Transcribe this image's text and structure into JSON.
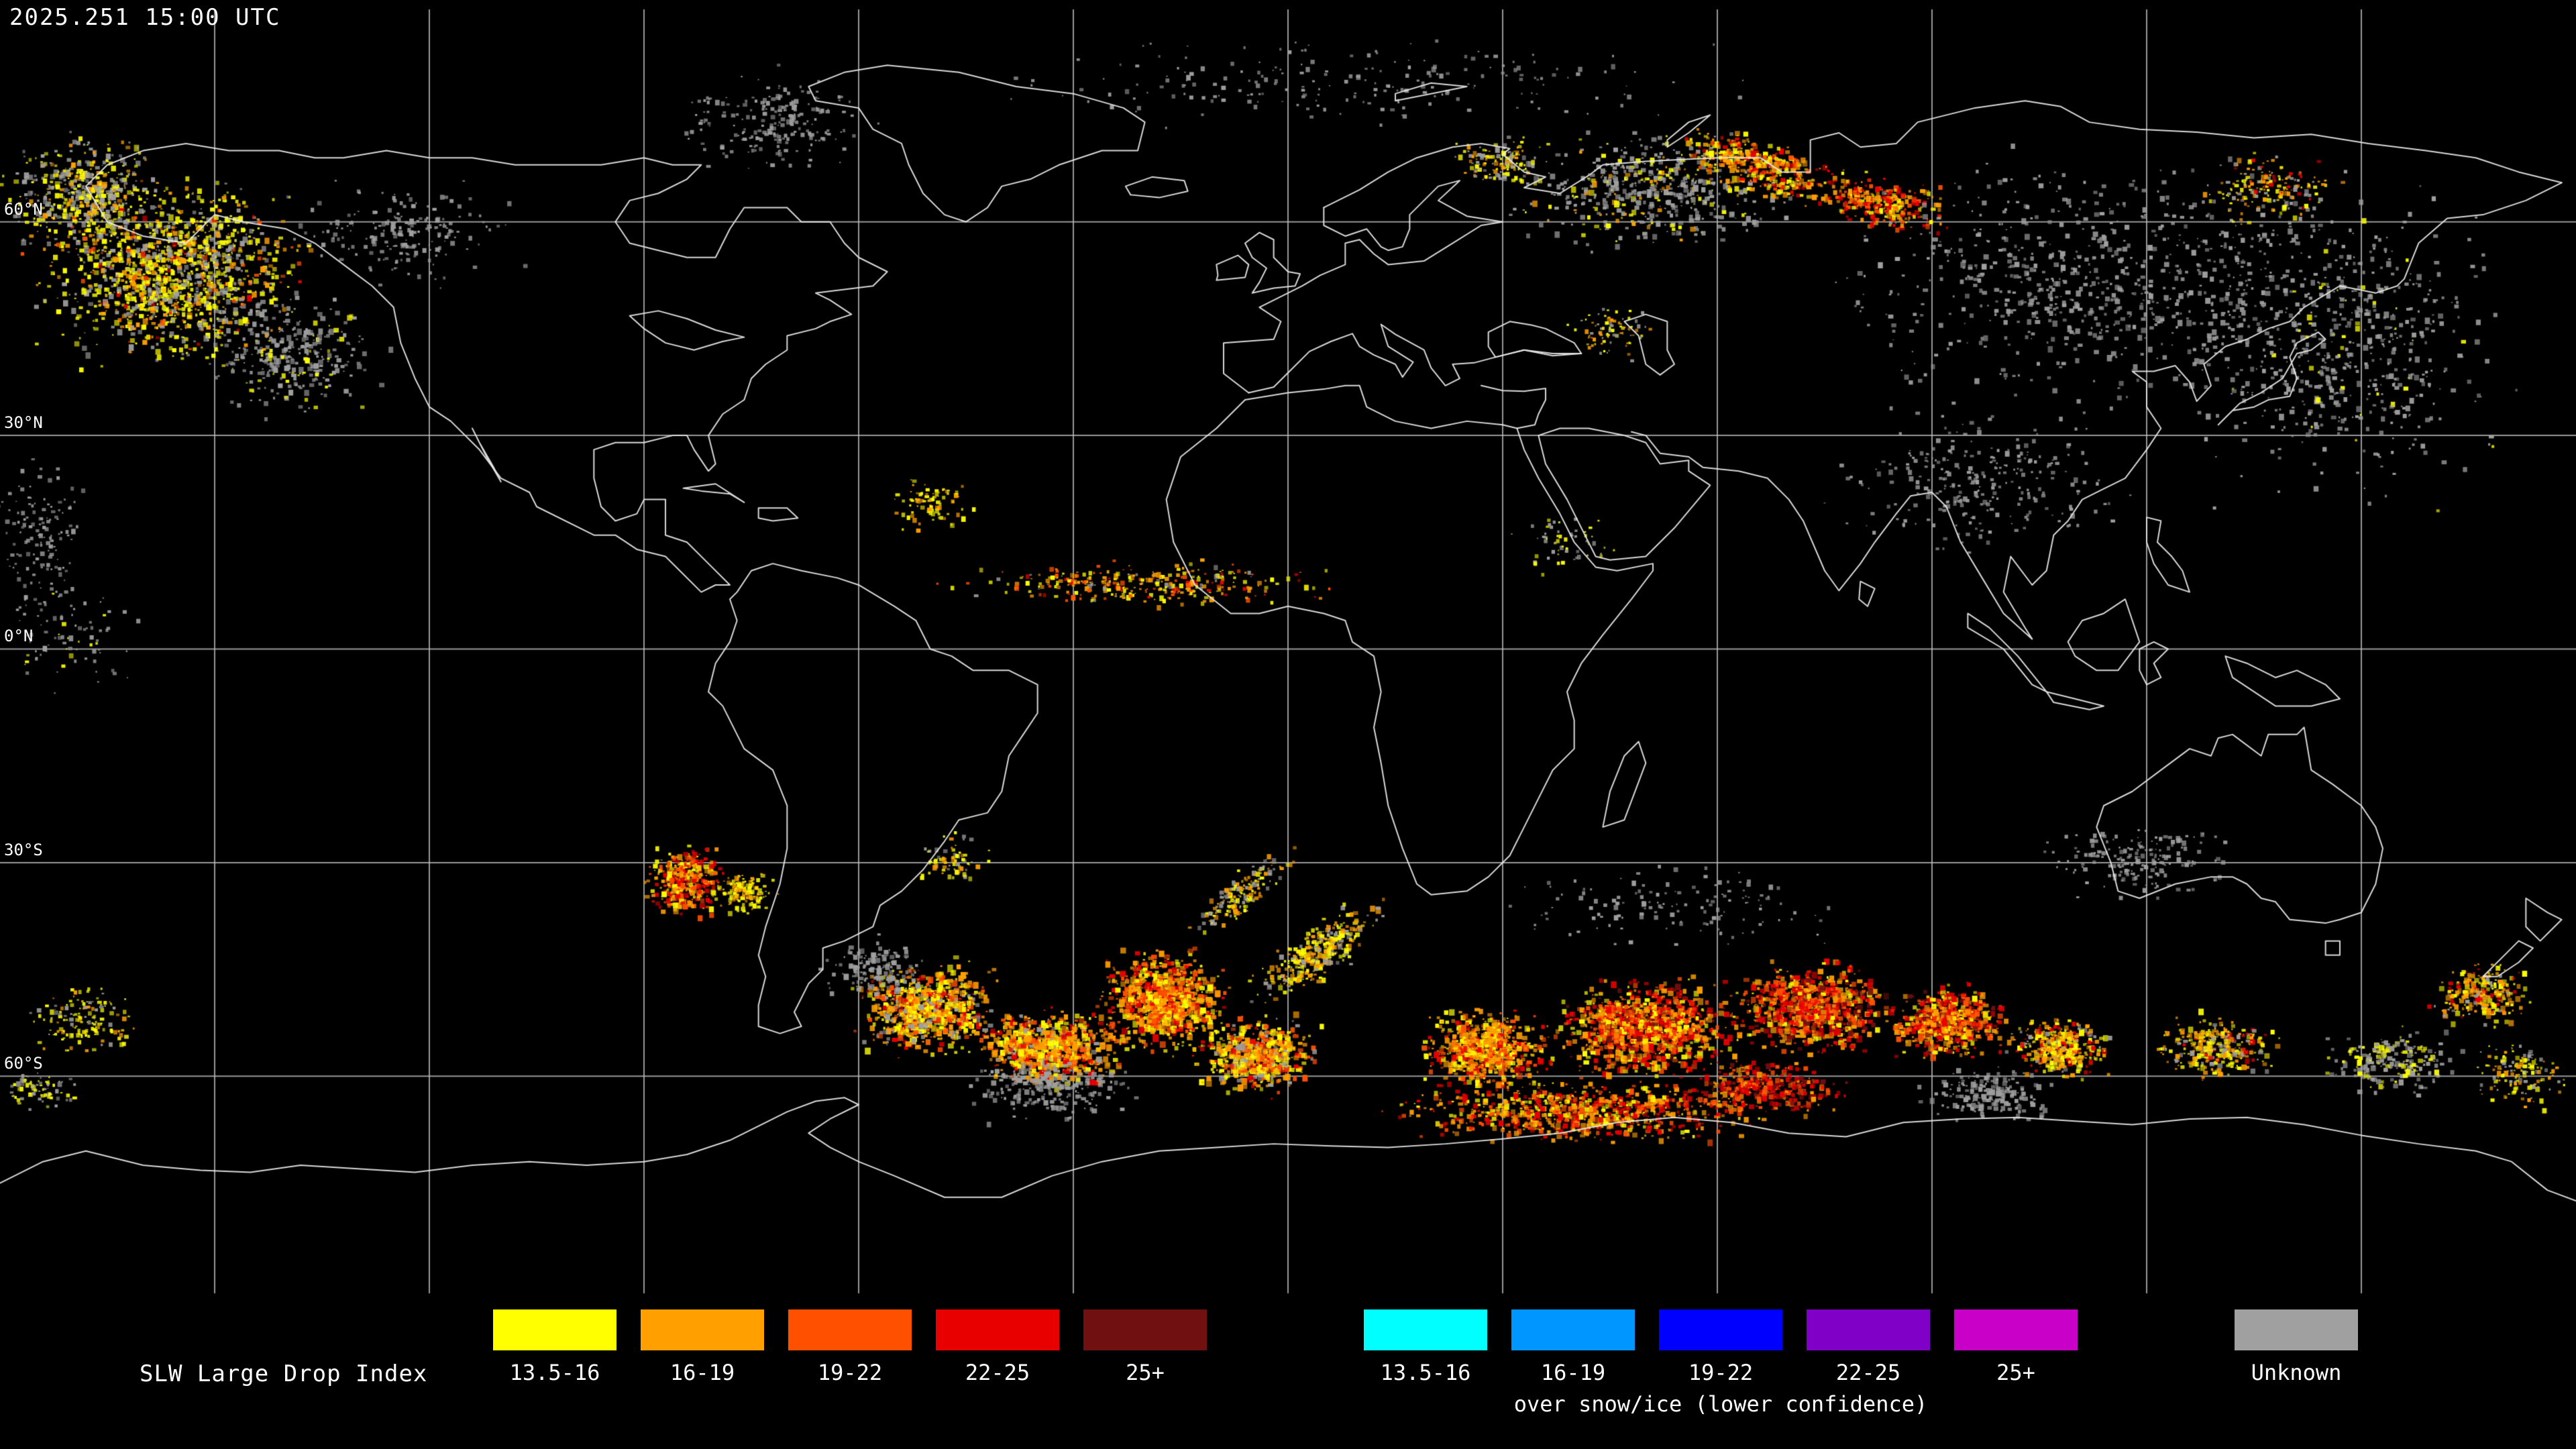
{
  "header": {
    "timestamp": "2025.251 15:00 UTC"
  },
  "map": {
    "grid_spacing_degrees": 30,
    "latitude_labels": [
      {
        "label": "60°N"
      },
      {
        "label": "30°N"
      },
      {
        "label": "0°N"
      },
      {
        "label": "30°S"
      },
      {
        "label": "60°S"
      }
    ]
  },
  "legend": {
    "title": "SLW Large Drop Index",
    "groups": [
      {
        "name": "standard",
        "entries": [
          {
            "label": "13.5-16",
            "color": "#FFFF00"
          },
          {
            "label": "16-19",
            "color": "#FFA000"
          },
          {
            "label": "19-22",
            "color": "#FF5000"
          },
          {
            "label": "22-25",
            "color": "#E80000"
          },
          {
            "label": "25+",
            "color": "#701010"
          }
        ]
      },
      {
        "name": "snow_ice",
        "caption": "over snow/ice (lower confidence)",
        "entries": [
          {
            "label": "13.5-16",
            "color": "#00FFFF"
          },
          {
            "label": "16-19",
            "color": "#0096FF"
          },
          {
            "label": "19-22",
            "color": "#0000FF"
          },
          {
            "label": "22-25",
            "color": "#8000C8"
          },
          {
            "label": "25+",
            "color": "#C800C8"
          }
        ]
      },
      {
        "name": "unknown",
        "entries": [
          {
            "label": "Unknown",
            "color": "#A0A0A0"
          }
        ]
      }
    ]
  },
  "colors": {
    "background": "#000000",
    "grid": "#BEBEBE",
    "coastline": "#EBEBEB",
    "text": "#FFFFFF"
  }
}
